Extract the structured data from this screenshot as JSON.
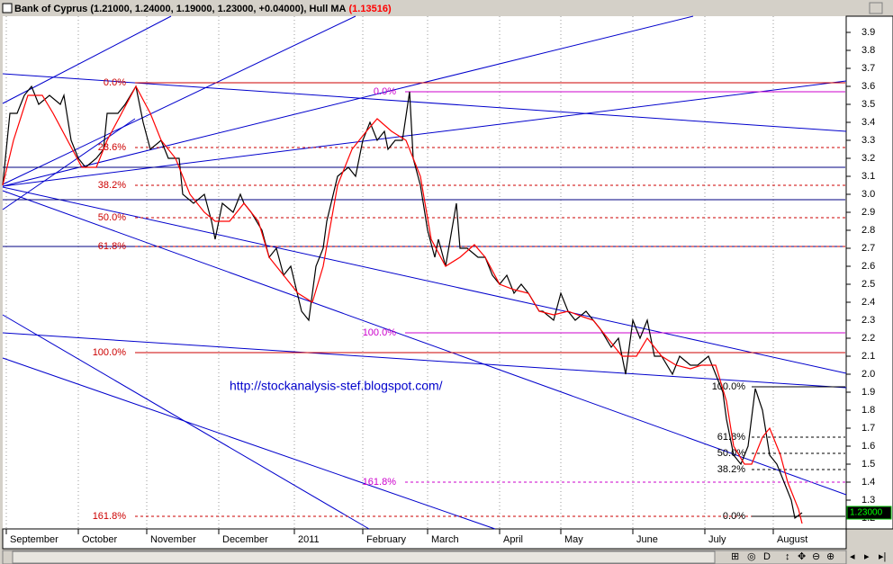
{
  "chart_data": {
    "type": "line",
    "title": "Bank of Cyprus",
    "ohlc_label": "(1.21000, 1.24000, 1.19000, 1.23000, +0.04000),",
    "indicator_value_label": "(1.13516)",
    "last_price_label": "1.23000",
    "annotation": "http://stockanalysis-stef.blogspot.com/",
    "xlim": [
      0,
      234
    ],
    "ylim": [
      1.14,
      3.99
    ],
    "xticks": [
      {
        "value": 1,
        "label": "September"
      },
      {
        "value": 21,
        "label": "October"
      },
      {
        "value": 40,
        "label": "November"
      },
      {
        "value": 60,
        "label": "December"
      },
      {
        "value": 81,
        "label": "2011"
      },
      {
        "value": 100,
        "label": "February"
      },
      {
        "value": 118,
        "label": "March"
      },
      {
        "value": 138,
        "label": "April"
      },
      {
        "value": 155,
        "label": "May"
      },
      {
        "value": 175,
        "label": "June"
      },
      {
        "value": 195,
        "label": "July"
      },
      {
        "value": 214,
        "label": "August"
      }
    ],
    "yticks": [
      3.9,
      3.8,
      3.7,
      3.6,
      3.5,
      3.4,
      3.3,
      3.2,
      3.1,
      {
        "value": 3,
        "label": "3.0"
      },
      2.9,
      2.8,
      2.7,
      2.6,
      2.5,
      2.4,
      2.3,
      2.2,
      2.1,
      {
        "value": 2,
        "label": "2.0"
      },
      1.9,
      1.8,
      1.7,
      1.6,
      1.5,
      1.4,
      1.3,
      1.2
    ],
    "grid": true,
    "series": [
      {
        "name": "Bank of Cyprus",
        "color": "#000000",
        "x": [
          0,
          2,
          4,
          6,
          8,
          10,
          13,
          16,
          17,
          19,
          21,
          23,
          26,
          28,
          29,
          32,
          34,
          37,
          39,
          41,
          44,
          46,
          49,
          50,
          53,
          56,
          58,
          59,
          61,
          64,
          66,
          67,
          69,
          72,
          74,
          76,
          78,
          80,
          83,
          85,
          87,
          89,
          90,
          93,
          96,
          98,
          100,
          102,
          104,
          106,
          107,
          109,
          111,
          113,
          114,
          116,
          118,
          120,
          121,
          123,
          126,
          127,
          129,
          132,
          134,
          136,
          138,
          140,
          142,
          144,
          146,
          149,
          150,
          153,
          155,
          157,
          159,
          162,
          164,
          166,
          169,
          171,
          173,
          175,
          177,
          179,
          181,
          183,
          186,
          188,
          191,
          193,
          196,
          198,
          200,
          201,
          203,
          205,
          207,
          209,
          211,
          213,
          215,
          217,
          219,
          220,
          222
        ],
        "values": [
          3.05,
          3.45,
          3.45,
          3.55,
          3.6,
          3.5,
          3.55,
          3.5,
          3.55,
          3.3,
          3.2,
          3.15,
          3.2,
          3.25,
          3.45,
          3.45,
          3.5,
          3.6,
          3.4,
          3.25,
          3.3,
          3.2,
          3.2,
          3.0,
          2.95,
          3.0,
          2.85,
          2.75,
          2.95,
          2.9,
          3.0,
          2.95,
          2.9,
          2.8,
          2.65,
          2.7,
          2.55,
          2.6,
          2.35,
          2.3,
          2.6,
          2.7,
          2.85,
          3.1,
          3.15,
          3.1,
          3.3,
          3.4,
          3.3,
          3.35,
          3.25,
          3.3,
          3.3,
          3.57,
          3.2,
          3.05,
          2.8,
          2.65,
          2.75,
          2.6,
          2.95,
          2.7,
          2.7,
          2.65,
          2.65,
          2.55,
          2.5,
          2.55,
          2.45,
          2.5,
          2.45,
          2.35,
          2.35,
          2.3,
          2.45,
          2.35,
          2.3,
          2.35,
          2.3,
          2.25,
          2.15,
          2.2,
          2.0,
          2.3,
          2.2,
          2.3,
          2.1,
          2.1,
          2.0,
          2.1,
          2.05,
          2.05,
          2.1,
          2.0,
          1.9,
          1.75,
          1.55,
          1.5,
          1.6,
          1.92,
          1.8,
          1.55,
          1.5,
          1.4,
          1.3,
          1.2,
          1.23
        ]
      },
      {
        "name": "Hull MA",
        "color": "#ff0000",
        "x": [
          0,
          3,
          7,
          11,
          14,
          18,
          22,
          26,
          29,
          33,
          37,
          41,
          44,
          48,
          52,
          56,
          59,
          63,
          67,
          71,
          74,
          78,
          82,
          86,
          89,
          93,
          97,
          101,
          104,
          108,
          112,
          116,
          119,
          123,
          127,
          131,
          134,
          138,
          142,
          146,
          149,
          153,
          157,
          161,
          164,
          168,
          172,
          176,
          179,
          183,
          187,
          191,
          194,
          198,
          201,
          203,
          206,
          208,
          211,
          213,
          216,
          218,
          221,
          222
        ],
        "values": [
          3.05,
          3.3,
          3.55,
          3.55,
          3.45,
          3.3,
          3.15,
          3.15,
          3.3,
          3.45,
          3.6,
          3.45,
          3.3,
          3.2,
          3.0,
          2.9,
          2.85,
          2.85,
          2.95,
          2.85,
          2.65,
          2.55,
          2.45,
          2.4,
          2.6,
          3.05,
          3.25,
          3.35,
          3.42,
          3.35,
          3.3,
          3.1,
          2.75,
          2.6,
          2.65,
          2.72,
          2.65,
          2.5,
          2.47,
          2.45,
          2.35,
          2.33,
          2.35,
          2.32,
          2.3,
          2.2,
          2.1,
          2.1,
          2.2,
          2.1,
          2.05,
          2.03,
          2.05,
          2.05,
          1.85,
          1.6,
          1.5,
          1.5,
          1.65,
          1.7,
          1.55,
          1.4,
          1.25,
          1.17
        ]
      }
    ],
    "horizontal_lines": {
      "color": "#000080",
      "values": [
        3.15,
        2.97,
        2.71
      ]
    },
    "fibonacci": [
      {
        "color": "#cc0000",
        "levels": [
          {
            "label": "0.0%",
            "value": 3.62,
            "dashed": false
          },
          {
            "label": "23.6%",
            "value": 3.26,
            "dashed": true
          },
          {
            "label": "38.2%",
            "value": 3.05,
            "dashed": true
          },
          {
            "label": "50.0%",
            "value": 2.87,
            "dashed": true
          },
          {
            "label": "61.8%",
            "value": 2.71,
            "dashed": true
          },
          {
            "label": "100.0%",
            "value": 2.12,
            "dashed": false
          },
          {
            "label": "161.8%",
            "value": 1.21,
            "dashed": true
          }
        ]
      },
      {
        "color": "#cc00cc",
        "levels": [
          {
            "label": "0.0%",
            "value": 3.57,
            "dashed": false
          },
          {
            "label": "100.0%",
            "value": 2.23,
            "dashed": false
          },
          {
            "label": "161.8%",
            "value": 1.4,
            "dashed": true
          }
        ]
      },
      {
        "color": "#000000",
        "levels": [
          {
            "label": "100.0%",
            "value": 1.93,
            "dashed": false
          },
          {
            "label": "61.8%",
            "value": 1.65,
            "dashed": true
          },
          {
            "label": "50.0%",
            "value": 1.56,
            "dashed": true
          },
          {
            "label": "38.2%",
            "value": 1.47,
            "dashed": true
          },
          {
            "label": "0.0%",
            "value": 1.21,
            "dashed": false
          }
        ]
      }
    ]
  }
}
